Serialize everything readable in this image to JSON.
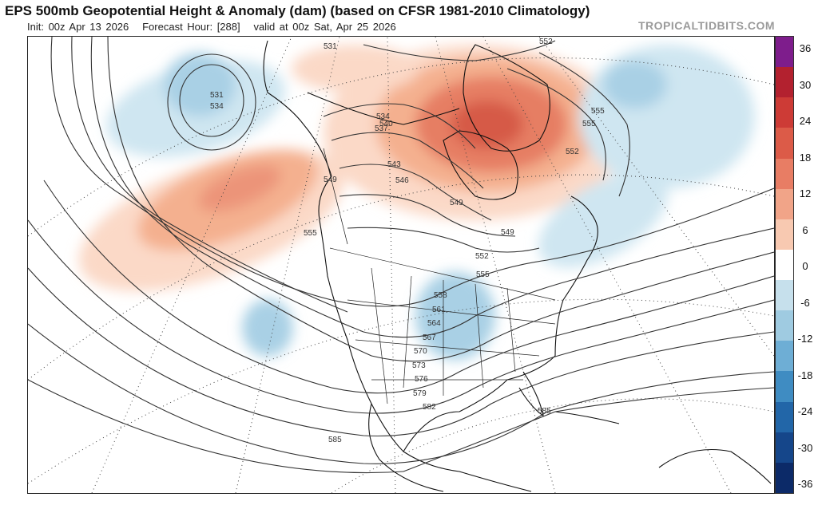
{
  "header": {
    "title": "EPS 500mb Geopotential Height & Anomaly (dam) (based on CFSR 1981-2010 Climatology)",
    "init": "Init: 00z Apr 13 2026",
    "forecast_hour": "Forecast Hour: [288]",
    "valid": "valid at 00z Sat, Apr 25 2026",
    "brand": "TROPICALTIDBITS.COM"
  },
  "colorbar": {
    "labels": [
      "36",
      "30",
      "24",
      "18",
      "12",
      "6",
      "0",
      "-6",
      "-12",
      "-18",
      "-24",
      "-30",
      "-36"
    ],
    "colors": [
      "#7e1d8c",
      "#b3212f",
      "#cd3b36",
      "#dc5b48",
      "#e87d64",
      "#f1a488",
      "#f8c9b1",
      "#ffffff",
      "#c6e0ec",
      "#9fcbe1",
      "#6eaed5",
      "#3f8cc2",
      "#2266a8",
      "#15468a",
      "#0c2a68"
    ]
  },
  "map": {
    "anomaly_colors": {
      "pos_light": "#fbd9c7",
      "pos_mid": "#f4b08f",
      "pos_strong": "#e67e63",
      "pos_core": "#d65a47",
      "neg_light": "#cfe6f1",
      "neg_mid": "#a9d0e5"
    },
    "contour_labels": [
      "531",
      "534",
      "531",
      "552",
      "555",
      "555",
      "552",
      "549",
      "549",
      "555",
      "549",
      "546",
      "543",
      "540",
      "537",
      "534",
      "552",
      "555",
      "558",
      "561",
      "564",
      "567",
      "570",
      "573",
      "576",
      "579",
      "582",
      "585",
      "585"
    ]
  }
}
